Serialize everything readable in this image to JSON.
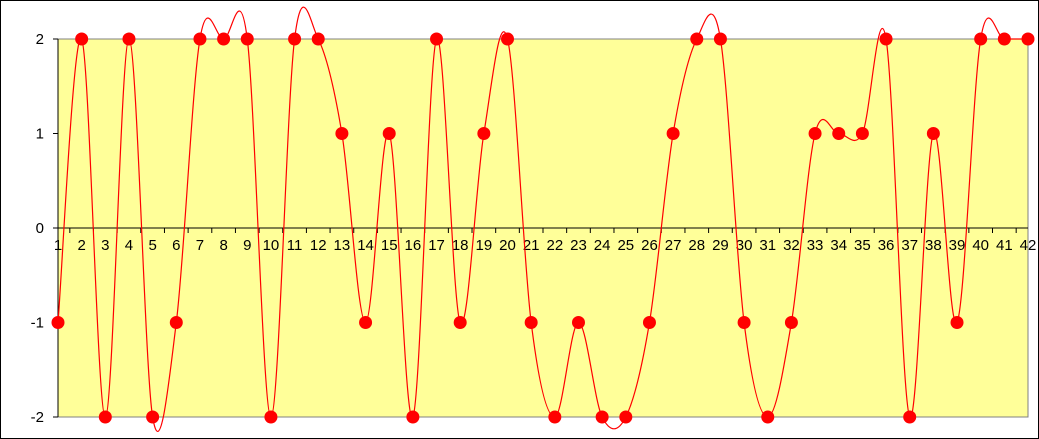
{
  "chart_data": {
    "type": "line",
    "title": "",
    "xlabel": "",
    "ylabel": "",
    "categories": [
      "1",
      "2",
      "3",
      "4",
      "5",
      "6",
      "7",
      "8",
      "9",
      "10",
      "11",
      "12",
      "13",
      "14",
      "15",
      "16",
      "17",
      "18",
      "19",
      "20",
      "21",
      "22",
      "23",
      "24",
      "25",
      "26",
      "27",
      "28",
      "29",
      "30",
      "31",
      "32",
      "33",
      "34",
      "35",
      "36",
      "37",
      "38",
      "39",
      "40",
      "41",
      "42"
    ],
    "ylim": [
      -2,
      2
    ],
    "yticks": [
      "-2",
      "-1",
      "0",
      "1",
      "2"
    ],
    "series": [
      {
        "values": [
          -1,
          2,
          -2,
          2,
          -2,
          -1,
          2,
          2,
          2,
          -2,
          2,
          2,
          1,
          -1,
          1,
          -2,
          2,
          -1,
          1,
          2,
          -1,
          -2,
          -1,
          -2,
          -2,
          -1,
          1,
          2,
          2,
          -1,
          -2,
          -1,
          1,
          1,
          1,
          2,
          -2,
          1,
          -1,
          2,
          2,
          2
        ],
        "line_color": "#ff0000",
        "marker_color": "#ff0000",
        "smooth": true
      }
    ],
    "plot_background": "#ffff99",
    "grid": false,
    "legend": "none"
  }
}
